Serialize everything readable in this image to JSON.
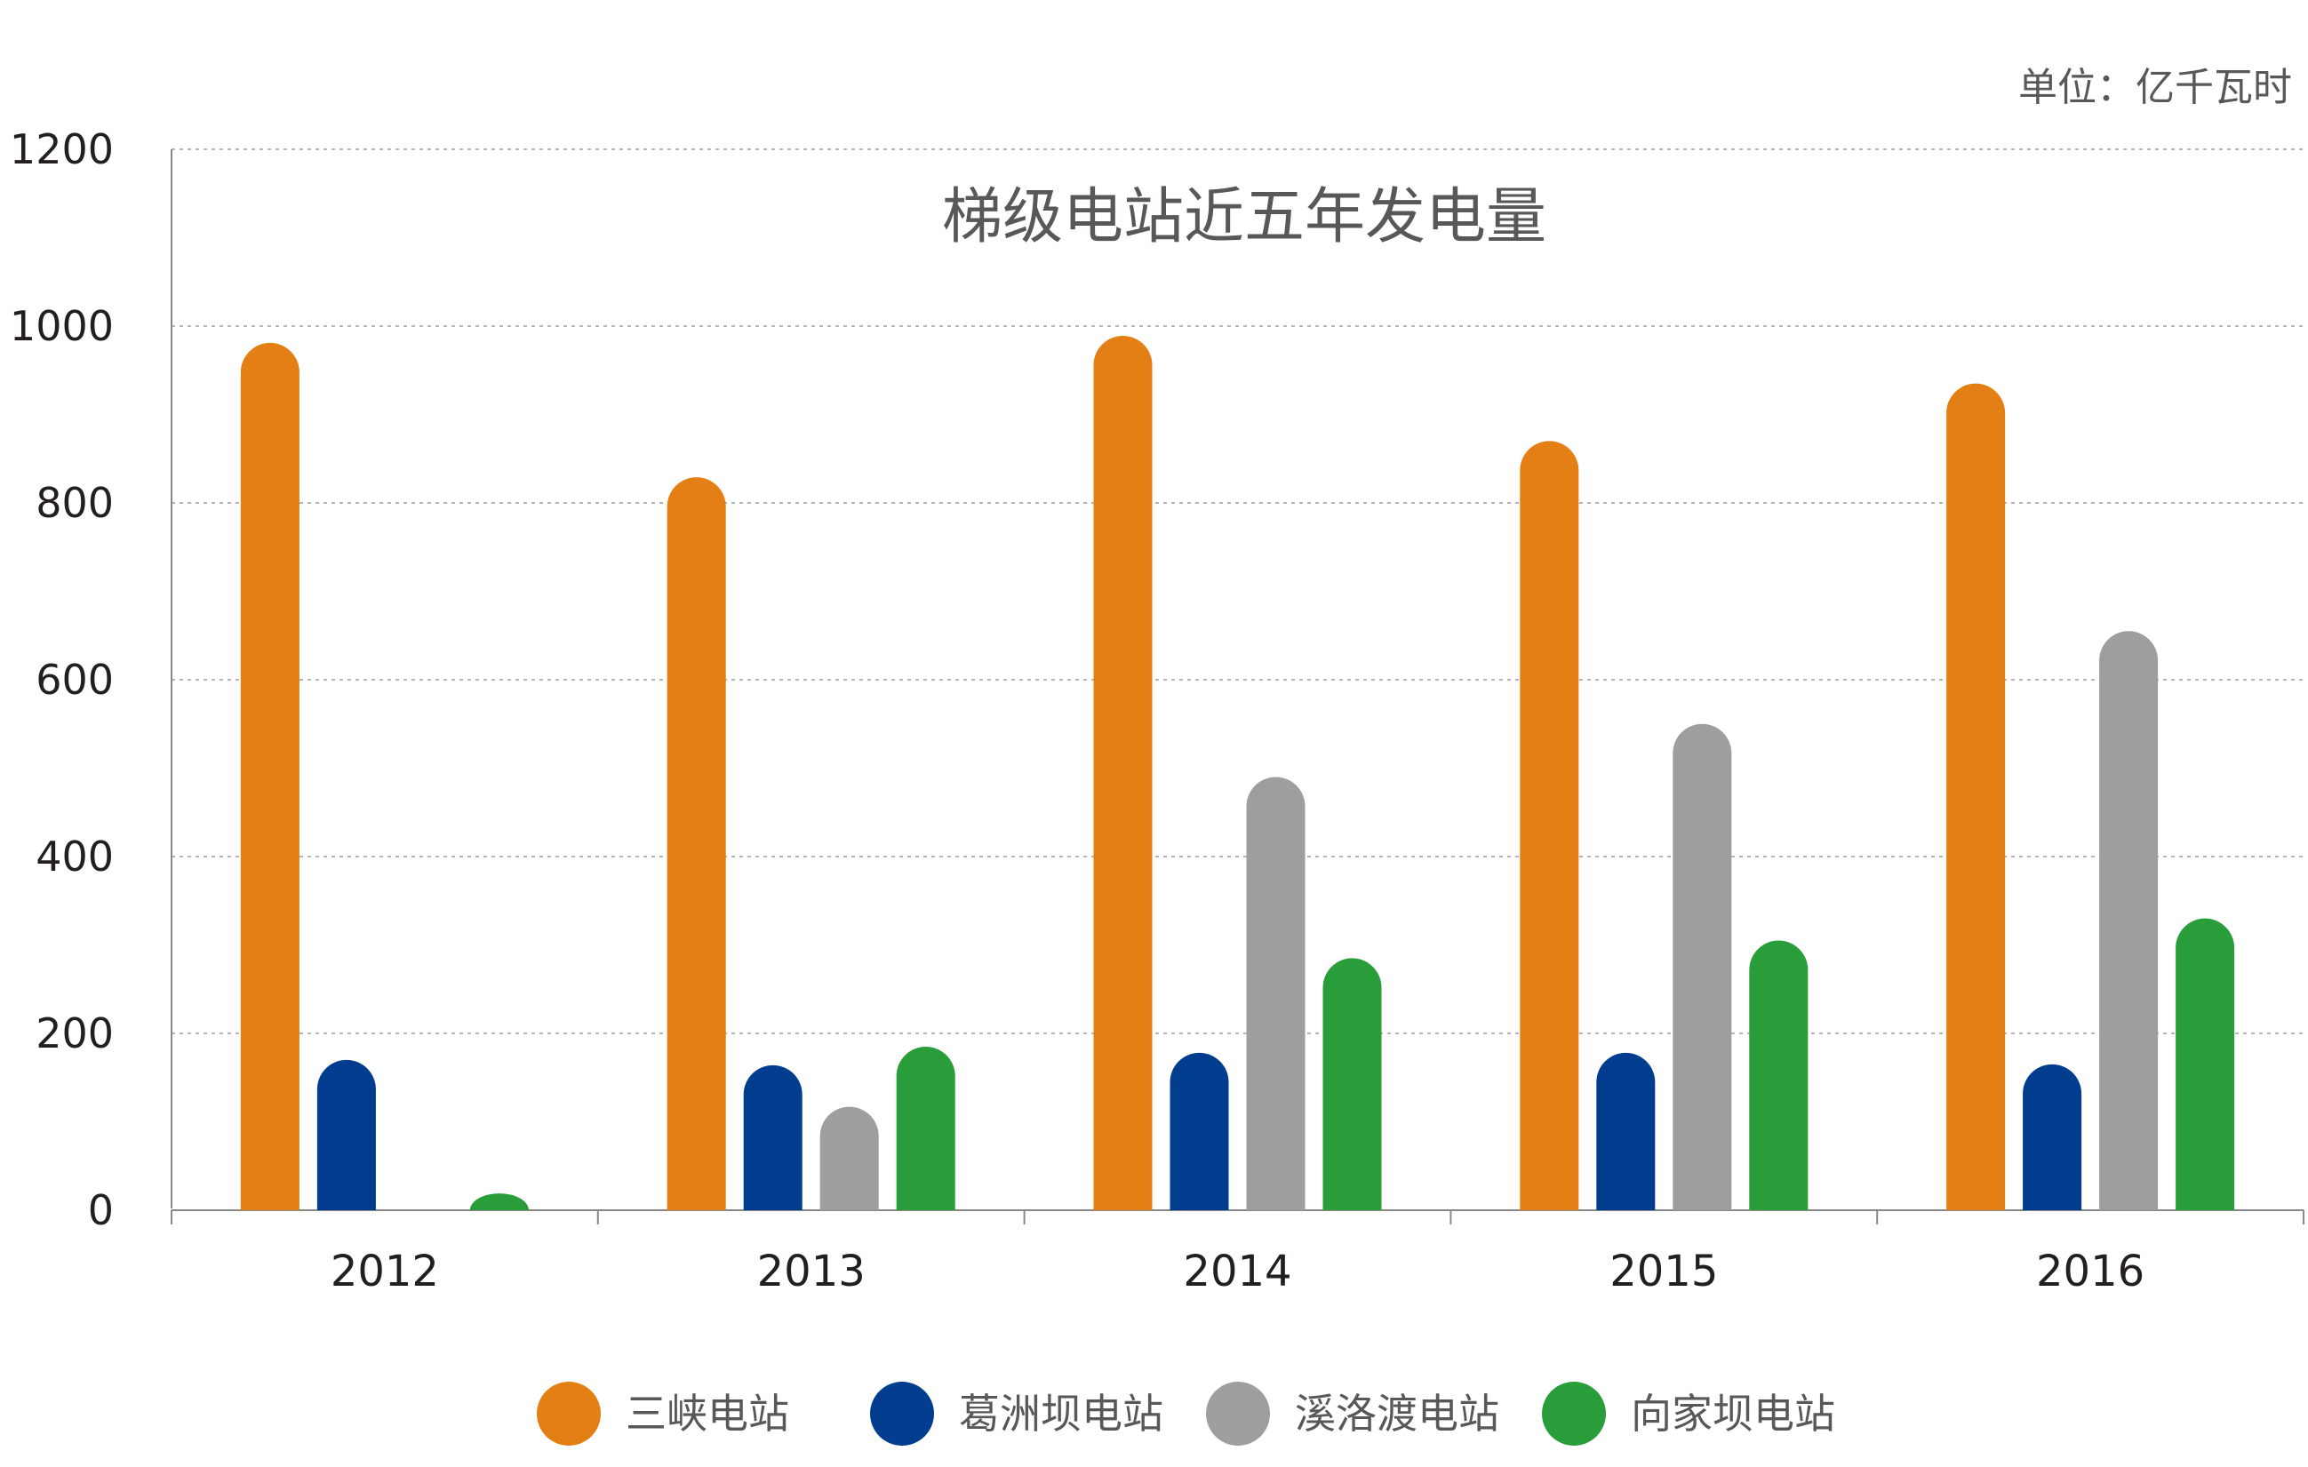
{
  "unit_label": "单位：亿千瓦时",
  "chart_data": {
    "type": "bar",
    "title": "梯级电站近五年发电量",
    "categories": [
      "2012",
      "2013",
      "2014",
      "2015",
      "2016"
    ],
    "series": [
      {
        "name": "三峡电站",
        "color": "#E37F14",
        "values": [
          981,
          829,
          989,
          870,
          935
        ]
      },
      {
        "name": "葛洲坝电站",
        "color": "#003D8F",
        "values": [
          170,
          164,
          178,
          178,
          165
        ]
      },
      {
        "name": "溪洛渡电站",
        "color": "#9E9E9E",
        "values": [
          null,
          117,
          490,
          550,
          655
        ]
      },
      {
        "name": "向家坝电站",
        "color": "#2A9D3B",
        "values": [
          19,
          185,
          285,
          305,
          330
        ]
      }
    ],
    "ylim": [
      0,
      1200
    ],
    "yticks": [
      "0",
      "200",
      "400",
      "600",
      "800",
      "1000",
      "1200"
    ],
    "grid": true,
    "legend": "bottom"
  }
}
